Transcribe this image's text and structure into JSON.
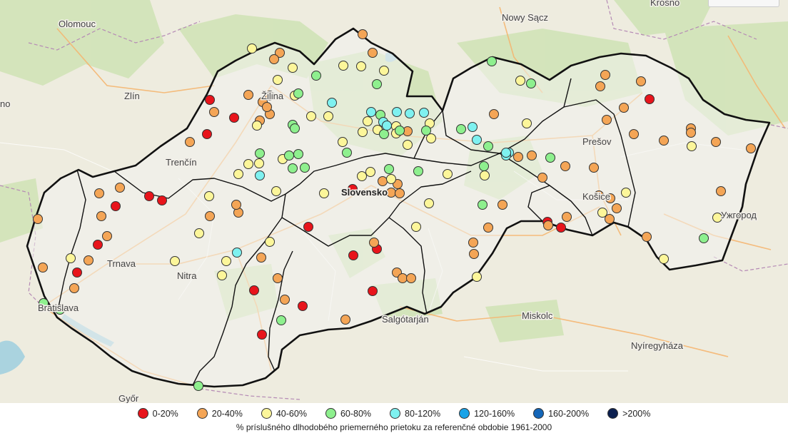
{
  "cities": [
    {
      "name": "Olomouc",
      "bold": false
    },
    {
      "name": "Zlín",
      "bold": false
    },
    {
      "name": "Žilina",
      "bold": false
    },
    {
      "name": "Trenčín",
      "bold": false
    },
    {
      "name": "Trnava",
      "bold": false
    },
    {
      "name": "Nitra",
      "bold": false
    },
    {
      "name": "Bratislava",
      "bold": false
    },
    {
      "name": "Győr",
      "bold": false
    },
    {
      "name": "Slovensko",
      "bold": true
    },
    {
      "name": "Nowy Sącz",
      "bold": false
    },
    {
      "name": "Krosno",
      "bold": false
    },
    {
      "name": "Prešov",
      "bold": false
    },
    {
      "name": "Košice",
      "bold": false
    },
    {
      "name": "Ужгород",
      "bold": false
    },
    {
      "name": "Salgótarján",
      "bold": false
    },
    {
      "name": "Miskolc",
      "bold": false
    },
    {
      "name": "Nyíregyháza",
      "bold": false
    },
    {
      "name": "no",
      "bold": false
    }
  ],
  "legend": {
    "items": [
      {
        "label": "0-20%",
        "color": "#e8141b"
      },
      {
        "label": "20-40%",
        "color": "#f4a556"
      },
      {
        "label": "40-60%",
        "color": "#fcf69a"
      },
      {
        "label": "60-80%",
        "color": "#8ef08e"
      },
      {
        "label": "80-120%",
        "color": "#7ef1f0"
      },
      {
        "label": "120-160%",
        "color": "#1aa3e8"
      },
      {
        "label": "160-200%",
        "color": "#1466b8"
      },
      {
        "label": ">200%",
        "color": "#0b1f4f"
      }
    ],
    "caption": "% príslušného dlhodobého priemerného prietoku za referenčné obdobie 1961-2000"
  }
}
